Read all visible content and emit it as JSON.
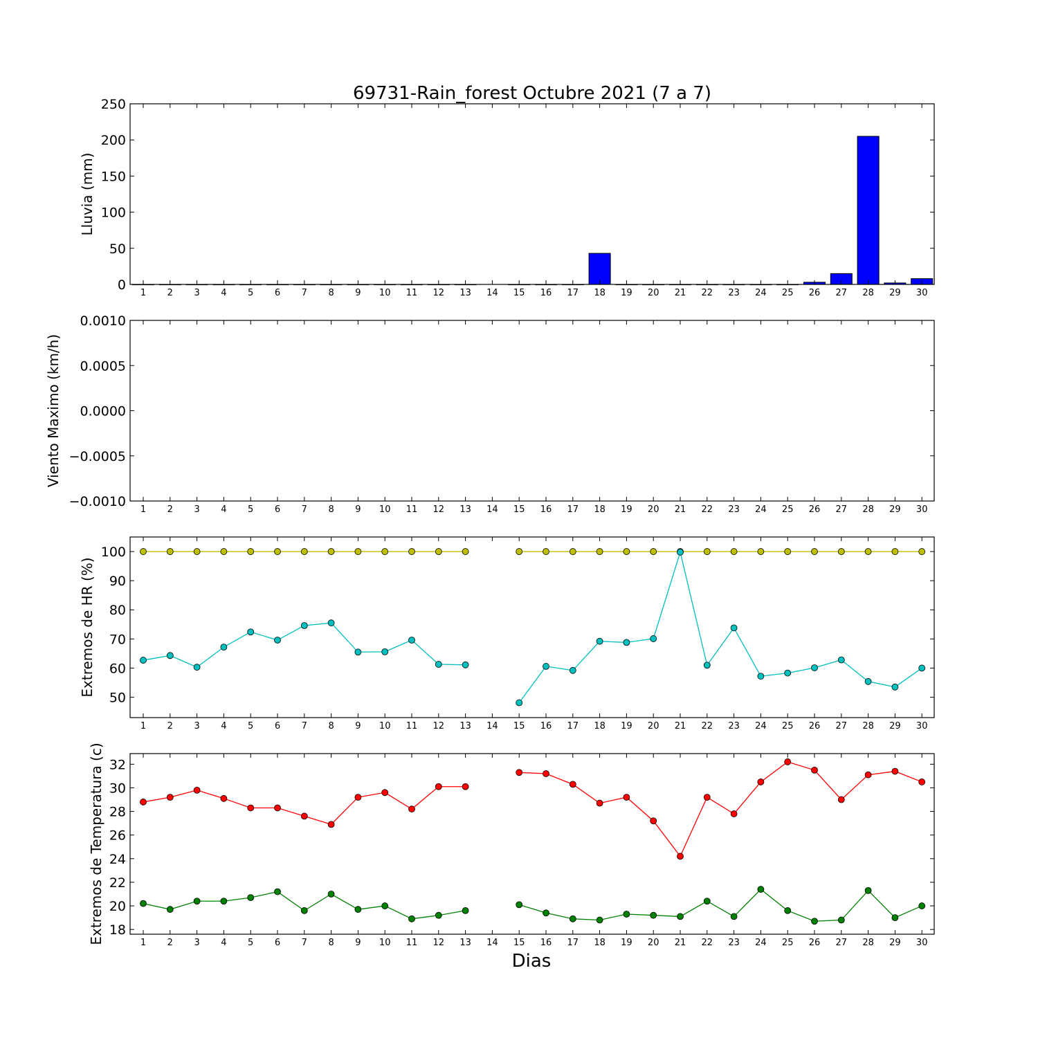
{
  "title": "69731-Rain_forest Octubre 2021  (7 a 7)",
  "xlabel": "Dias",
  "chart_data": [
    {
      "type": "bar",
      "ylabel": "Lluvia (mm)",
      "ylim": [
        0,
        250
      ],
      "yticks": [
        "0",
        "50",
        "100",
        "150",
        "200",
        "250"
      ],
      "ytick_values": [
        0,
        50,
        100,
        150,
        200,
        250
      ],
      "categories": [
        "1",
        "2",
        "3",
        "4",
        "5",
        "6",
        "7",
        "8",
        "9",
        "10",
        "11",
        "12",
        "13",
        "14",
        "15",
        "16",
        "17",
        "18",
        "19",
        "20",
        "21",
        "22",
        "23",
        "24",
        "25",
        "26",
        "27",
        "28",
        "29",
        "30"
      ],
      "values": [
        0,
        0,
        0,
        0,
        0,
        0,
        0,
        0,
        0,
        0,
        0,
        0,
        0,
        null,
        0,
        0,
        0,
        43,
        0,
        0,
        0,
        0,
        0,
        0,
        0,
        3,
        15,
        205,
        2,
        8
      ],
      "color": "#0000ff"
    },
    {
      "type": "line",
      "ylabel": "Viento Maximo (km/h)",
      "ylim": [
        -0.001,
        0.001
      ],
      "yticks": [
        "−0.0010",
        "−0.0005",
        "0.0000",
        "0.0005",
        "0.0010"
      ],
      "ytick_values": [
        -0.001,
        -0.0005,
        0,
        0.0005,
        0.001
      ],
      "categories": [
        "1",
        "2",
        "3",
        "4",
        "5",
        "6",
        "7",
        "8",
        "9",
        "10",
        "11",
        "12",
        "13",
        "14",
        "15",
        "16",
        "17",
        "18",
        "19",
        "20",
        "21",
        "22",
        "23",
        "24",
        "25",
        "26",
        "27",
        "28",
        "29",
        "30"
      ],
      "series": []
    },
    {
      "type": "line",
      "ylabel": "Extremos de HR (%)",
      "ylim": [
        43,
        105
      ],
      "yticks": [
        "50",
        "60",
        "70",
        "80",
        "90",
        "100"
      ],
      "ytick_values": [
        50,
        60,
        70,
        80,
        90,
        100
      ],
      "categories": [
        "1",
        "2",
        "3",
        "4",
        "5",
        "6",
        "7",
        "8",
        "9",
        "10",
        "11",
        "12",
        "13",
        "14",
        "15",
        "16",
        "17",
        "18",
        "19",
        "20",
        "21",
        "22",
        "23",
        "24",
        "25",
        "26",
        "27",
        "28",
        "29",
        "30"
      ],
      "series": [
        {
          "color": "#bfbf00",
          "values": [
            100,
            100,
            100,
            100,
            100,
            100,
            100,
            100,
            100,
            100,
            100,
            100,
            100,
            null,
            100,
            100,
            100,
            100,
            100,
            100,
            100,
            100,
            100,
            100,
            100,
            100,
            100,
            100,
            100,
            100
          ]
        },
        {
          "color": "#00bfbf",
          "values": [
            62.7,
            64.3,
            60.3,
            67.2,
            72.4,
            69.6,
            74.6,
            75.5,
            65.5,
            65.6,
            69.6,
            61.3,
            61.1,
            null,
            48.1,
            60.6,
            59.2,
            69.2,
            68.8,
            70.1,
            99.8,
            61.0,
            73.8,
            57.2,
            58.3,
            60.1,
            62.8,
            55.4,
            53.5,
            60.0
          ]
        }
      ]
    },
    {
      "type": "line",
      "ylabel": "Extremos de Temperatura (c)",
      "ylim": [
        17.6,
        32.9
      ],
      "yticks": [
        "18",
        "20",
        "22",
        "24",
        "26",
        "28",
        "30",
        "32"
      ],
      "ytick_values": [
        18,
        20,
        22,
        24,
        26,
        28,
        30,
        32
      ],
      "categories": [
        "1",
        "2",
        "3",
        "4",
        "5",
        "6",
        "7",
        "8",
        "9",
        "10",
        "11",
        "12",
        "13",
        "14",
        "15",
        "16",
        "17",
        "18",
        "19",
        "20",
        "21",
        "22",
        "23",
        "24",
        "25",
        "26",
        "27",
        "28",
        "29",
        "30"
      ],
      "series": [
        {
          "color": "#ff0000",
          "values": [
            28.8,
            29.2,
            29.8,
            29.1,
            28.3,
            28.3,
            27.6,
            26.9,
            29.2,
            29.6,
            28.2,
            30.1,
            30.1,
            null,
            31.3,
            31.2,
            30.3,
            28.7,
            29.2,
            27.2,
            24.2,
            29.2,
            27.8,
            30.5,
            32.2,
            31.5,
            29.0,
            31.1,
            31.4,
            30.5
          ]
        },
        {
          "color": "#008000",
          "values": [
            20.2,
            19.7,
            20.4,
            20.4,
            20.7,
            21.2,
            19.6,
            21.0,
            19.7,
            20.0,
            18.9,
            19.2,
            19.6,
            null,
            20.1,
            19.4,
            18.9,
            18.8,
            19.3,
            19.2,
            19.1,
            20.4,
            19.1,
            21.4,
            19.6,
            18.7,
            18.8,
            21.3,
            19.0,
            20.0
          ]
        }
      ]
    }
  ]
}
